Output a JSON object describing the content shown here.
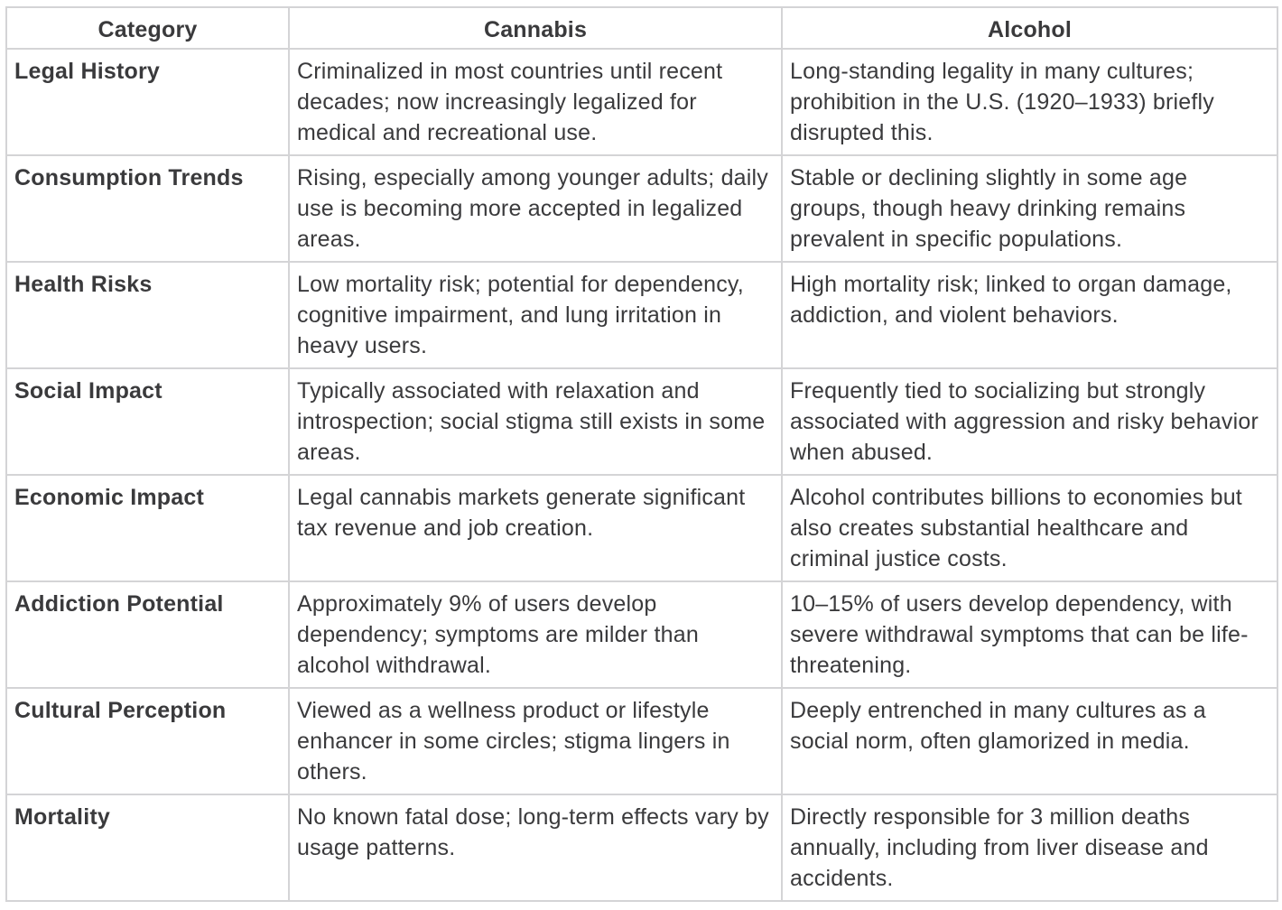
{
  "headers": [
    "Category",
    "Cannabis",
    "Alcohol"
  ],
  "rows": [
    {
      "category": "Legal History",
      "cannabis": "Criminalized in most countries until recent decades; now increasingly legalized for medical and recreational use.",
      "alcohol": "Long-standing legality in many cultures; prohibition in the U.S. (1920–1933) briefly disrupted this."
    },
    {
      "category": "Consumption Trends",
      "cannabis": "Rising, especially among younger adults; daily use is becoming more accepted in legalized areas.",
      "alcohol": "Stable or declining slightly in some age groups, though heavy drinking remains prevalent in specific populations."
    },
    {
      "category": "Health Risks",
      "cannabis": "Low mortality risk; potential for dependency, cognitive impairment, and lung irritation in heavy users.",
      "alcohol": "High mortality risk; linked to organ damage, addiction, and violent behaviors."
    },
    {
      "category": "Social Impact",
      "cannabis": "Typically associated with relaxation and introspection; social stigma still exists in some areas.",
      "alcohol": "Frequently tied to socializing but strongly associated with aggression and risky behavior when abused."
    },
    {
      "category": "Economic Impact",
      "cannabis": "Legal cannabis markets generate significant tax revenue and job creation.",
      "alcohol": "Alcohol contributes billions to economies but also creates substantial healthcare and criminal justice costs."
    },
    {
      "category": "Addiction Potential",
      "cannabis": "Approximately 9% of users develop dependency; symptoms are milder than alcohol withdrawal.",
      "alcohol": "10–15% of users develop dependency, with severe withdrawal symptoms that can be life-threatening."
    },
    {
      "category": "Cultural Perception",
      "cannabis": "Viewed as a wellness product or lifestyle enhancer in some circles; stigma lingers in others.",
      "alcohol": "Deeply entrenched in many cultures as a social norm, often glamorized in media."
    },
    {
      "category": "Mortality",
      "cannabis": "No known fatal dose; long-term effects vary by usage patterns.",
      "alcohol": "Directly responsible for 3 million deaths annually, including from liver disease and accidents."
    }
  ]
}
